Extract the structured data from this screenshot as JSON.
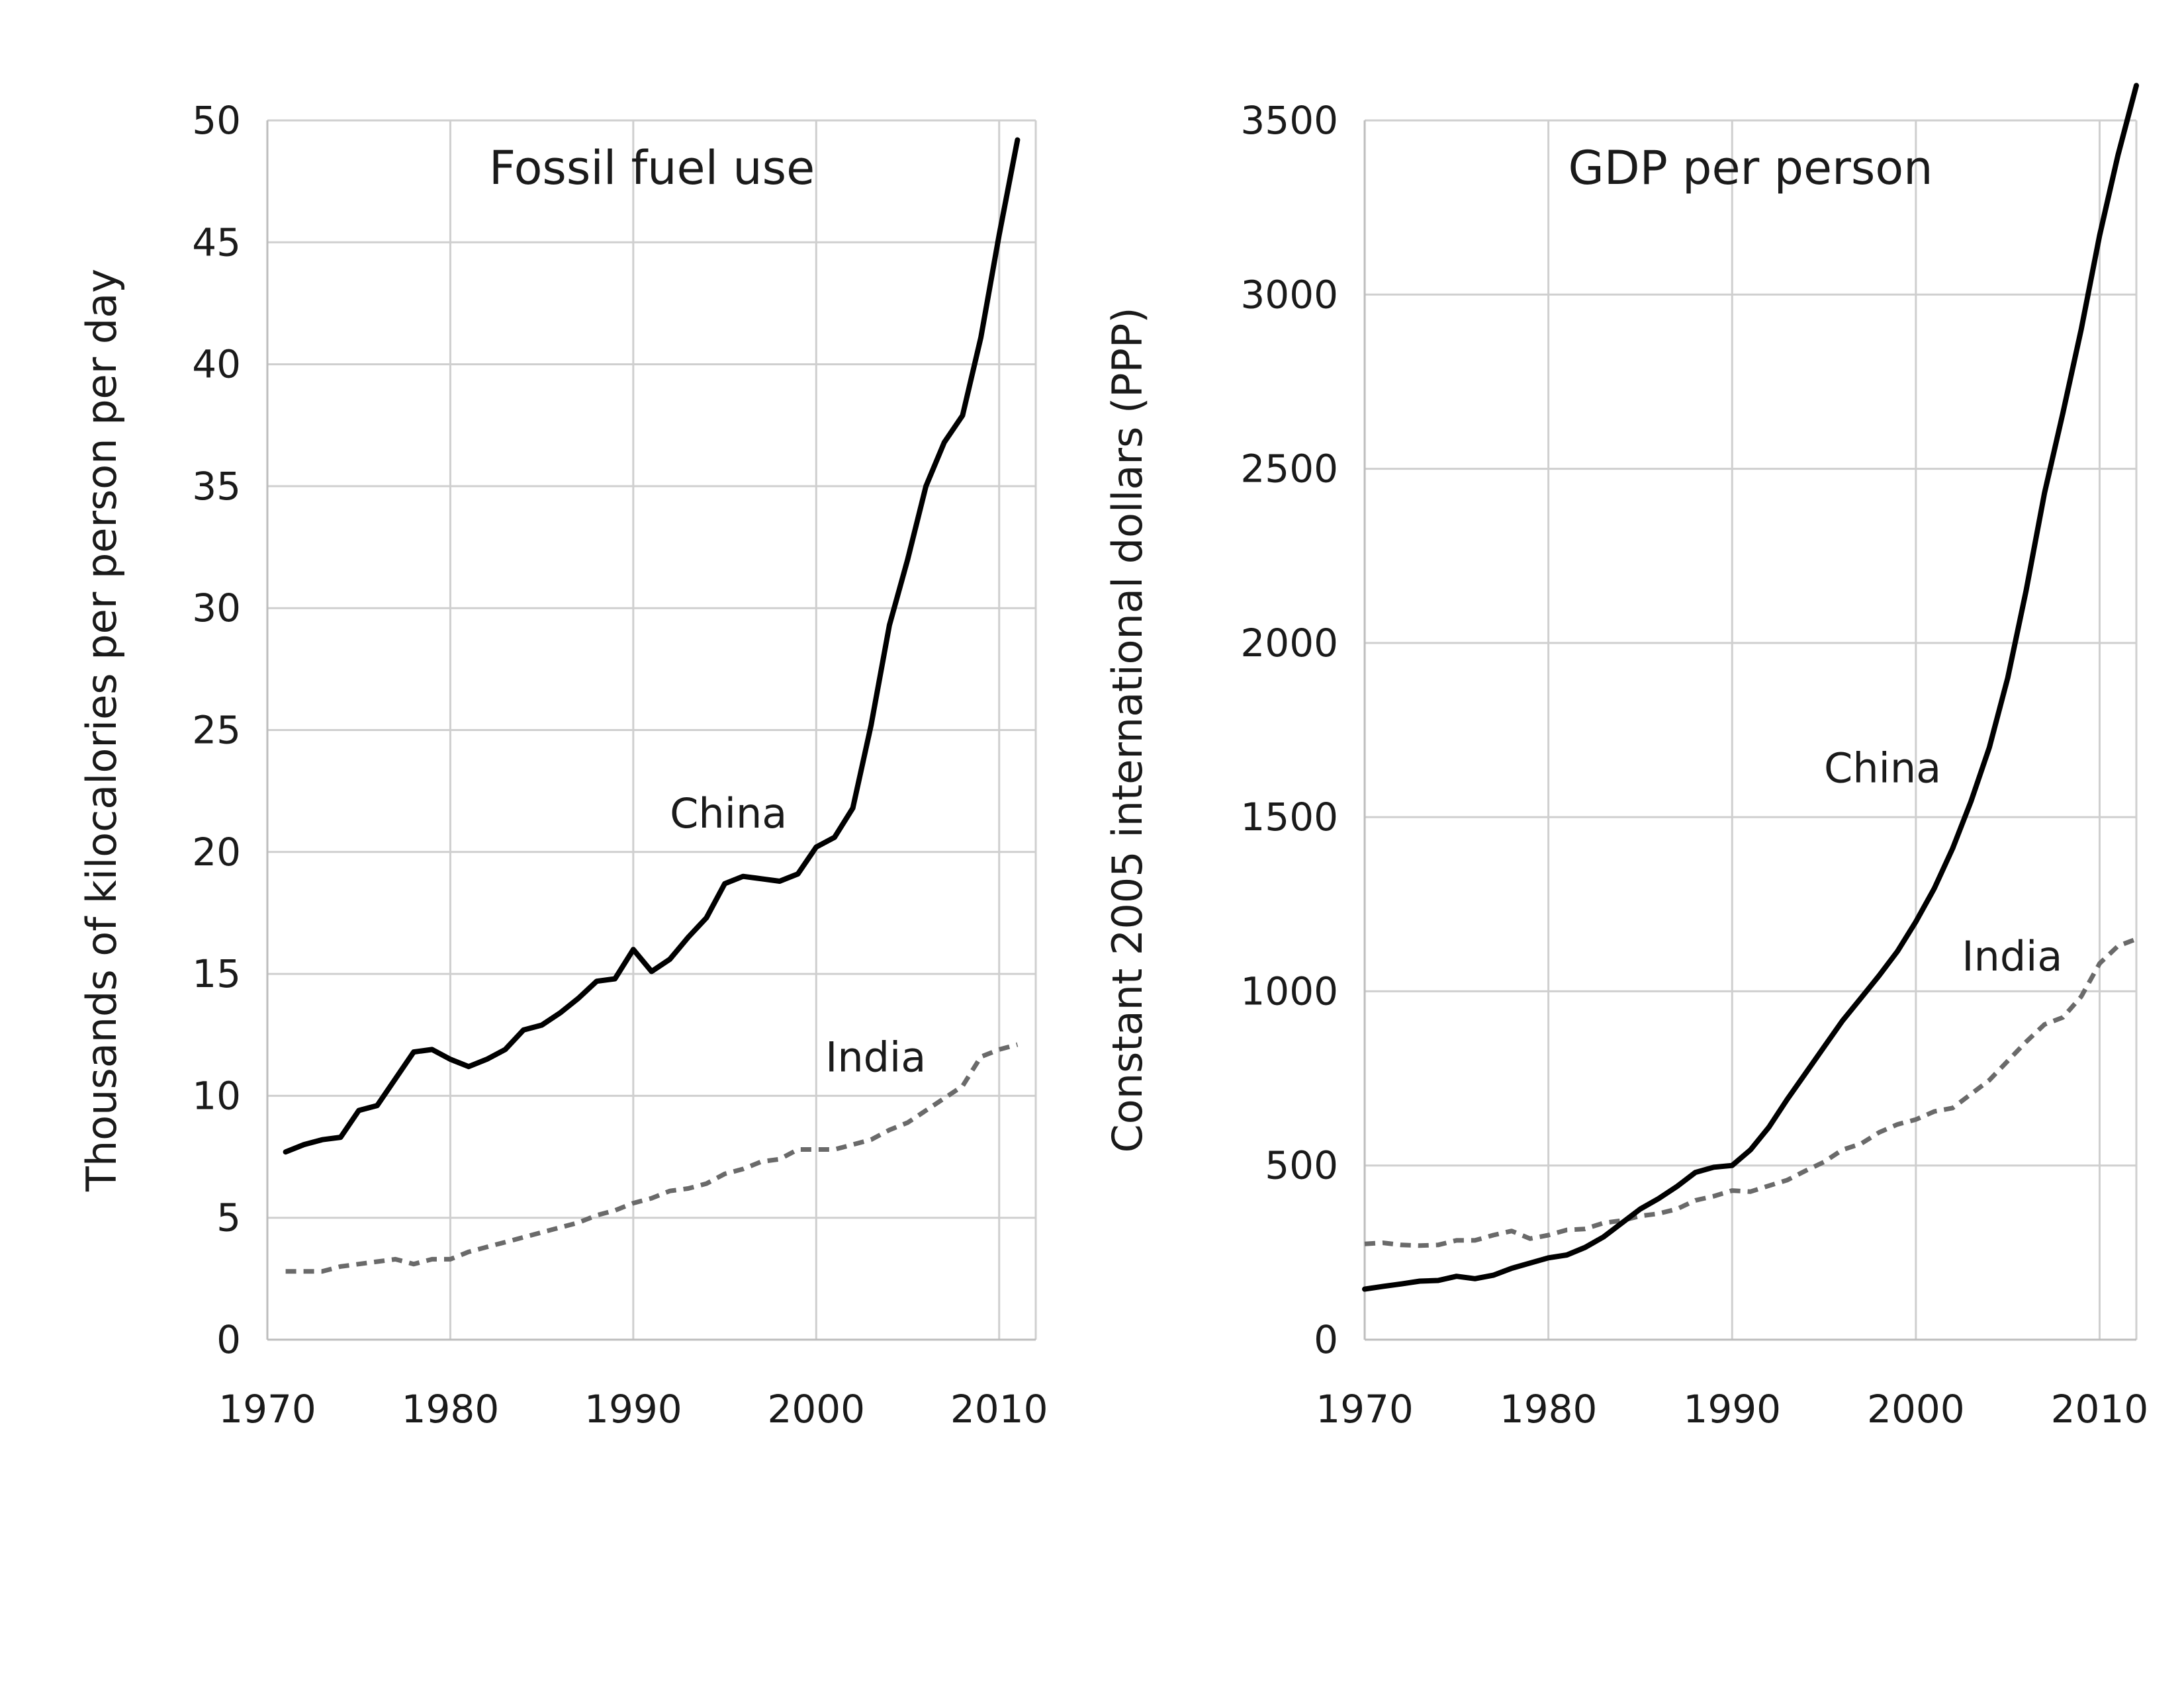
{
  "chart_data": [
    {
      "type": "line",
      "title": "Fossil fuel use",
      "xlabel": "",
      "ylabel": "Thousands of kilocalories per person per day",
      "xlim": [
        1970,
        2012
      ],
      "ylim": [
        0,
        50
      ],
      "xticks": [
        "1970",
        "1980",
        "1990",
        "2000",
        "2010"
      ],
      "yticks": [
        "0",
        "5",
        "10",
        "15",
        "20",
        "25",
        "30",
        "35",
        "40",
        "45",
        "50"
      ],
      "grid": true,
      "legend": "none",
      "series": [
        {
          "name": "China",
          "style": "solid",
          "color": "#000000",
          "x": [
            1971,
            1972,
            1973,
            1974,
            1975,
            1976,
            1977,
            1978,
            1979,
            1980,
            1981,
            1982,
            1983,
            1984,
            1985,
            1986,
            1987,
            1988,
            1989,
            1990,
            1991,
            1992,
            1993,
            1994,
            1995,
            1996,
            1997,
            1998,
            1999,
            2000,
            2001,
            2002,
            2003,
            2004,
            2005,
            2006,
            2007,
            2008,
            2009,
            2010,
            2011
          ],
          "y": [
            7.7,
            8.0,
            8.2,
            8.3,
            9.4,
            9.6,
            10.7,
            11.8,
            11.9,
            11.5,
            11.2,
            11.5,
            11.9,
            12.7,
            12.9,
            13.4,
            14.0,
            14.7,
            14.8,
            16.0,
            15.1,
            15.6,
            16.5,
            17.3,
            18.7,
            19.0,
            18.9,
            18.8,
            19.1,
            20.2,
            20.6,
            21.8,
            25.2,
            29.3,
            32.0,
            35.0,
            36.8,
            37.9,
            41.1,
            45.3,
            49.2
          ]
        },
        {
          "name": "India",
          "style": "dashed",
          "color": "#6a6a6a",
          "x": [
            1971,
            1972,
            1973,
            1974,
            1975,
            1976,
            1977,
            1978,
            1979,
            1980,
            1981,
            1982,
            1983,
            1984,
            1985,
            1986,
            1987,
            1988,
            1989,
            1990,
            1991,
            1992,
            1993,
            1994,
            1995,
            1996,
            1997,
            1998,
            1999,
            2000,
            2001,
            2002,
            2003,
            2004,
            2005,
            2006,
            2007,
            2008,
            2009,
            2010,
            2011
          ],
          "y": [
            2.8,
            2.8,
            2.8,
            3.0,
            3.1,
            3.2,
            3.3,
            3.1,
            3.3,
            3.3,
            3.6,
            3.8,
            4.0,
            4.2,
            4.4,
            4.6,
            4.8,
            5.1,
            5.3,
            5.6,
            5.8,
            6.1,
            6.2,
            6.4,
            6.8,
            7.0,
            7.3,
            7.4,
            7.8,
            7.8,
            7.8,
            8.0,
            8.2,
            8.6,
            8.9,
            9.4,
            9.9,
            10.4,
            11.6,
            11.9,
            12.1
          ]
        }
      ],
      "annotations": [
        {
          "text": "China",
          "x": 1992.0,
          "y": 21.0
        },
        {
          "text": "India",
          "x": 2000.5,
          "y": 11.0
        }
      ]
    },
    {
      "type": "line",
      "title": "GDP per person",
      "xlabel": "",
      "ylabel": "Constant 2005 international dollars (PPP)",
      "xlim": [
        1970,
        2012
      ],
      "ylim": [
        0,
        3500
      ],
      "xticks": [
        "1970",
        "1980",
        "1990",
        "2000",
        "2010"
      ],
      "yticks": [
        "0",
        "500",
        "1000",
        "1500",
        "2000",
        "2500",
        "3000",
        "3500"
      ],
      "grid": true,
      "legend": "none",
      "series": [
        {
          "name": "China",
          "style": "solid",
          "color": "#000000",
          "x": [
            1970,
            1971,
            1972,
            1973,
            1974,
            1975,
            1976,
            1977,
            1978,
            1979,
            1980,
            1981,
            1982,
            1983,
            1984,
            1985,
            1986,
            1987,
            1988,
            1989,
            1990,
            1991,
            1992,
            1993,
            1994,
            1995,
            1996,
            1997,
            1998,
            1999,
            2000,
            2001,
            2002,
            2003,
            2004,
            2005,
            2006,
            2007,
            2008,
            2009,
            2010,
            2011,
            2012
          ],
          "y": [
            145,
            153,
            160,
            168,
            170,
            182,
            175,
            185,
            205,
            220,
            235,
            243,
            265,
            295,
            335,
            375,
            405,
            440,
            480,
            495,
            500,
            545,
            610,
            690,
            765,
            840,
            915,
            980,
            1045,
            1115,
            1200,
            1295,
            1410,
            1545,
            1700,
            1900,
            2150,
            2430,
            2660,
            2900,
            3170,
            3400,
            3600
          ]
        },
        {
          "name": "India",
          "style": "dashed",
          "color": "#6a6a6a",
          "x": [
            1970,
            1971,
            1972,
            1973,
            1974,
            1975,
            1976,
            1977,
            1978,
            1979,
            1980,
            1981,
            1982,
            1983,
            1984,
            1985,
            1986,
            1987,
            1988,
            1989,
            1990,
            1991,
            1992,
            1993,
            1994,
            1995,
            1996,
            1997,
            1998,
            1999,
            2000,
            2001,
            2002,
            2003,
            2004,
            2005,
            2006,
            2007,
            2008,
            2009,
            2010,
            2011,
            2012
          ],
          "y": [
            275,
            278,
            272,
            270,
            272,
            285,
            285,
            300,
            312,
            290,
            300,
            315,
            318,
            335,
            342,
            355,
            362,
            375,
            400,
            412,
            428,
            425,
            442,
            458,
            485,
            510,
            545,
            562,
            595,
            618,
            632,
            655,
            665,
            705,
            745,
            800,
            855,
            905,
            925,
            985,
            1080,
            1130,
            1150
          ]
        }
      ],
      "annotations": [
        {
          "text": "China",
          "x": 1995.0,
          "y": 1600
        },
        {
          "text": "India",
          "x": 2002.5,
          "y": 1060
        }
      ]
    }
  ]
}
